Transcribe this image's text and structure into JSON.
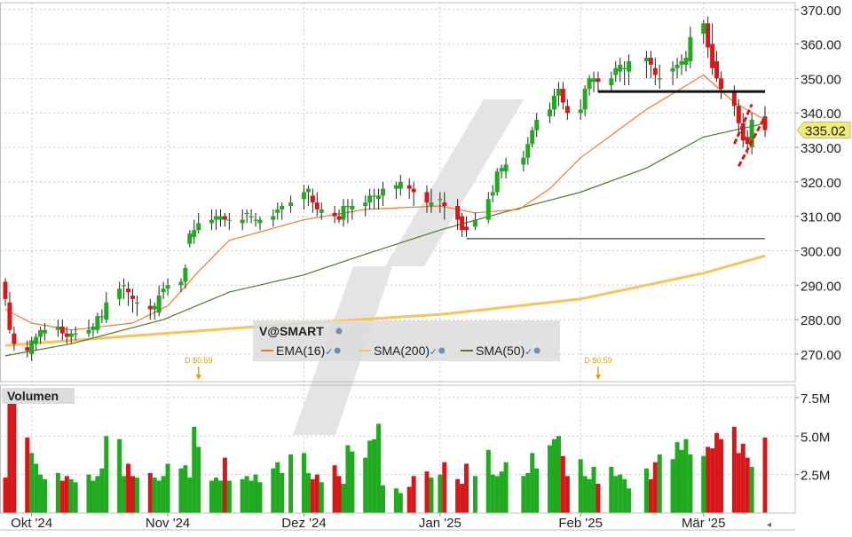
{
  "chart_data": [
    {
      "type": "candlestick",
      "title": "V@SMART",
      "ylim": [
        262,
        372
      ],
      "yticks": [
        270,
        280,
        290,
        300,
        310,
        320,
        330,
        340,
        350,
        360,
        370
      ],
      "ytick_labels": [
        "270.00",
        "280.00",
        "290.00",
        "300.00",
        "310.00",
        "320.00",
        "330.00",
        "340.00",
        "350.00",
        "360.00",
        "370.00"
      ],
      "last_price": 335.02,
      "last_price_label": "335.02",
      "grid": true,
      "legend_placement": "bottom-center",
      "legend": [
        {
          "name": "EMA(16)",
          "color": "#f07a2c"
        },
        {
          "name": "SMA(200)",
          "color": "#f7c35b"
        },
        {
          "name": "SMA(50)",
          "color": "#4c7a2c"
        }
      ],
      "dividends": [
        {
          "label": "D $0.59",
          "date": "2024-11-08"
        },
        {
          "label": "D $0.59",
          "date": "2025-02-07"
        }
      ],
      "up_color": "#1faa1f",
      "down_color": "#d81818",
      "x_axis": {
        "labels": [
          "Okt '24",
          "Nov '24",
          "Dez '24",
          "Jan '25",
          "Feb '25",
          "Mär '25"
        ],
        "label_dates": [
          "2024-10-01",
          "2024-11-01",
          "2024-12-02",
          "2025-01-02",
          "2025-02-03",
          "2025-03-03"
        ]
      },
      "candles": {
        "dates": [
          "2024-09-25",
          "2024-09-26",
          "2024-09-27",
          "2024-09-30",
          "2024-10-01",
          "2024-10-02",
          "2024-10-03",
          "2024-10-04",
          "2024-10-07",
          "2024-10-08",
          "2024-10-09",
          "2024-10-10",
          "2024-10-11",
          "2024-10-14",
          "2024-10-15",
          "2024-10-16",
          "2024-10-17",
          "2024-10-18",
          "2024-10-21",
          "2024-10-22",
          "2024-10-23",
          "2024-10-24",
          "2024-10-25",
          "2024-10-28",
          "2024-10-29",
          "2024-10-30",
          "2024-10-31",
          "2024-11-01",
          "2024-11-04",
          "2024-11-05",
          "2024-11-06",
          "2024-11-07",
          "2024-11-08",
          "2024-11-11",
          "2024-11-12",
          "2024-11-13",
          "2024-11-14",
          "2024-11-15",
          "2024-11-18",
          "2024-11-19",
          "2024-11-20",
          "2024-11-21",
          "2024-11-22",
          "2024-11-25",
          "2024-11-26",
          "2024-11-27",
          "2024-11-29",
          "2024-12-02",
          "2024-12-03",
          "2024-12-04",
          "2024-12-05",
          "2024-12-06",
          "2024-12-09",
          "2024-12-10",
          "2024-12-11",
          "2024-12-12",
          "2024-12-13",
          "2024-12-16",
          "2024-12-17",
          "2024-12-18",
          "2024-12-19",
          "2024-12-20",
          "2024-12-23",
          "2024-12-24",
          "2024-12-26",
          "2024-12-27",
          "2024-12-30",
          "2024-12-31",
          "2025-01-02",
          "2025-01-03",
          "2025-01-06",
          "2025-01-07",
          "2025-01-08",
          "2025-01-10",
          "2025-01-13",
          "2025-01-14",
          "2025-01-15",
          "2025-01-16",
          "2025-01-17",
          "2025-01-21",
          "2025-01-22",
          "2025-01-23",
          "2025-01-24",
          "2025-01-27",
          "2025-01-28",
          "2025-01-29",
          "2025-01-30",
          "2025-01-31",
          "2025-02-03",
          "2025-02-04",
          "2025-02-05",
          "2025-02-06",
          "2025-02-07",
          "2025-02-10",
          "2025-02-11",
          "2025-02-12",
          "2025-02-13",
          "2025-02-14",
          "2025-02-18",
          "2025-02-19",
          "2025-02-20",
          "2025-02-21",
          "2025-02-24",
          "2025-02-25",
          "2025-02-26",
          "2025-02-27",
          "2025-02-28",
          "2025-03-03",
          "2025-03-04",
          "2025-03-05",
          "2025-03-06",
          "2025-03-07",
          "2025-03-10",
          "2025-03-11",
          "2025-03-12",
          "2025-03-13",
          "2025-03-14",
          "2025-03-17"
        ],
        "open": [
          291,
          285,
          276,
          272,
          270,
          273,
          275,
          276,
          277,
          278,
          276,
          275,
          276,
          276,
          277,
          277,
          281,
          280,
          286,
          290,
          289,
          287,
          285,
          284,
          283,
          282,
          288,
          289,
          290,
          291,
          302,
          304,
          306,
          308,
          309,
          309,
          310,
          309,
          308,
          311,
          310,
          309,
          308,
          309,
          311,
          312,
          313,
          315,
          317,
          316,
          314,
          311,
          311,
          310,
          309,
          313,
          312,
          313,
          314,
          316,
          315,
          316,
          318,
          318,
          319,
          318,
          317,
          313,
          315,
          314,
          313,
          310,
          307,
          307,
          309,
          316,
          317,
          323,
          323,
          325,
          327,
          331,
          335,
          339,
          341,
          345,
          347,
          342,
          340,
          341,
          347,
          349,
          350,
          348,
          351,
          352,
          353,
          352,
          355,
          356,
          353,
          350,
          352,
          353,
          354,
          354,
          355,
          363,
          366,
          360,
          355,
          350,
          346,
          342,
          337,
          333,
          330,
          339
        ],
        "high": [
          292,
          288,
          278,
          274,
          275,
          276,
          278,
          279,
          280,
          280,
          278,
          277,
          278,
          280,
          279,
          282,
          283,
          288,
          291,
          292,
          291,
          289,
          287,
          286,
          285,
          290,
          291,
          292,
          292,
          296,
          306,
          309,
          311,
          312,
          312,
          312,
          311,
          311,
          312,
          312,
          312,
          311,
          310,
          312,
          314,
          314,
          316,
          319,
          319,
          318,
          317,
          314,
          313,
          312,
          315,
          315,
          315,
          316,
          318,
          318,
          318,
          320,
          320,
          322,
          321,
          320,
          319,
          318,
          317,
          317,
          315,
          311,
          310,
          311,
          317,
          319,
          324,
          325,
          327,
          329,
          333,
          336,
          340,
          343,
          347,
          349,
          349,
          344,
          344,
          348,
          351,
          352,
          352,
          352,
          355,
          356,
          355,
          357,
          358,
          358,
          356,
          354,
          355,
          356,
          357,
          358,
          365,
          367,
          368,
          366,
          358,
          352,
          348,
          344,
          340,
          335,
          340,
          342
        ],
        "low": [
          284,
          276,
          271,
          269,
          268,
          271,
          273,
          274,
          275,
          274,
          273,
          273,
          274,
          275,
          275,
          276,
          279,
          279,
          284,
          286,
          284,
          282,
          281,
          280,
          280,
          281,
          286,
          287,
          288,
          289,
          301,
          302,
          305,
          306,
          306,
          307,
          307,
          306,
          306,
          308,
          308,
          307,
          306,
          307,
          309,
          309,
          311,
          312,
          313,
          311,
          310,
          309,
          308,
          308,
          307,
          308,
          309,
          310,
          312,
          312,
          312,
          313,
          315,
          316,
          315,
          313,
          311,
          311,
          311,
          309,
          306,
          304,
          304,
          306,
          308,
          314,
          316,
          321,
          321,
          323,
          325,
          330,
          333,
          337,
          339,
          342,
          341,
          338,
          338,
          339,
          345,
          346,
          346,
          346,
          349,
          349,
          348,
          348,
          350,
          350,
          348,
          347,
          348,
          350,
          351,
          352,
          353,
          360,
          356,
          351,
          349,
          344,
          339,
          334,
          330,
          328,
          328,
          333
        ],
        "close": [
          286,
          277,
          273,
          271,
          274,
          275,
          277,
          277,
          278,
          276,
          275,
          276,
          276,
          277,
          278,
          281,
          281,
          285,
          289,
          290,
          288,
          286,
          285,
          283,
          284,
          287,
          289,
          290,
          291,
          295,
          305,
          306,
          308,
          309,
          310,
          310,
          309,
          309,
          309,
          311,
          310,
          309,
          309,
          310,
          312,
          313,
          314,
          317,
          318,
          314,
          312,
          312,
          310,
          309,
          313,
          313,
          313,
          314,
          316,
          316,
          316,
          318,
          319,
          320,
          318,
          317,
          314,
          314,
          315,
          313,
          309,
          306,
          306,
          309,
          315,
          317,
          323,
          324,
          325,
          327,
          331,
          335,
          338,
          341,
          345,
          347,
          343,
          340,
          341,
          347,
          350,
          350,
          349,
          350,
          353,
          354,
          353,
          355,
          356,
          354,
          351,
          350,
          353,
          354,
          355,
          356,
          362,
          366,
          359,
          353,
          350,
          347,
          342,
          337,
          332,
          331,
          338,
          335
        ]
      },
      "sma200": {
        "dates": [
          "2024-09-25",
          "2024-10-31",
          "2024-12-02",
          "2025-01-02",
          "2025-02-03",
          "2025-03-03",
          "2025-03-17"
        ],
        "values": [
          272.5,
          276,
          279,
          281.5,
          286,
          293.5,
          298.5
        ]
      },
      "sma50": {
        "dates": [
          "2024-09-25",
          "2024-10-10",
          "2024-10-31",
          "2024-11-15",
          "2024-12-02",
          "2024-12-16",
          "2025-01-02",
          "2025-01-16",
          "2025-02-03",
          "2025-02-18",
          "2025-03-03",
          "2025-03-17"
        ],
        "values": [
          269.5,
          273,
          280,
          288,
          293,
          299,
          306,
          311,
          317,
          324,
          333,
          337
        ]
      },
      "ema16": {
        "dates": [
          "2024-09-25",
          "2024-10-01",
          "2024-10-10",
          "2024-10-24",
          "2024-11-01",
          "2024-11-08",
          "2024-11-15",
          "2024-12-02",
          "2024-12-16",
          "2025-01-02",
          "2025-01-10",
          "2025-01-20",
          "2025-01-27",
          "2025-02-03",
          "2025-02-18",
          "2025-03-03",
          "2025-03-10",
          "2025-03-17"
        ],
        "values": [
          283,
          279,
          277,
          279,
          284,
          294,
          303,
          309,
          312,
          313,
          311,
          312,
          318,
          327,
          341,
          351,
          343,
          338
        ]
      },
      "trendlines": [
        {
          "style": "horizontal",
          "color": "#111111",
          "width": 3,
          "from": "2025-02-07",
          "to": "2025-03-17",
          "value": 346.2
        },
        {
          "style": "horizontal",
          "color": "#111111",
          "width": 1,
          "from": "2025-01-08",
          "to": "2025-03-17",
          "value": 303.5
        },
        {
          "style": "dashed",
          "color": "#d81818",
          "width": 3,
          "from": "2025-03-11",
          "to": "2025-03-17",
          "value_from": 324.5,
          "value_to": 339
        },
        {
          "style": "dashed",
          "color": "#d81818",
          "width": 3,
          "from": "2025-03-10",
          "to": "2025-03-14",
          "value_from": 331,
          "value_to": 342.5
        }
      ]
    },
    {
      "type": "bar",
      "title": "Volumen",
      "ylim": [
        0,
        8.3
      ],
      "yticks": [
        2.5,
        5.0,
        7.5
      ],
      "ytick_labels": [
        "2.5M",
        "5.0M",
        "7.5M"
      ],
      "unit": "M",
      "values": [
        2.3,
        7.5,
        7.5,
        4.9,
        3.9,
        3.2,
        2.5,
        2.2,
        2.6,
        2.1,
        2.4,
        2.2,
        2.0,
        2.5,
        2.1,
        2.4,
        2.9,
        5.0,
        4.8,
        2.4,
        3.2,
        2.4,
        2.3,
        2.6,
        2.3,
        2.1,
        2.4,
        3.2,
        2.9,
        3.1,
        2.3,
        5.6,
        4.3,
        2.1,
        2.3,
        2.1,
        3.6,
        2.1,
        2.2,
        2.4,
        2.1,
        2.5,
        2.0,
        2.9,
        3.3,
        2.6,
        3.8,
        3.9,
        2.6,
        2.2,
        2.5,
        2.0,
        3.1,
        2.4,
        1.9,
        4.4,
        4.0,
        3.6,
        4.7,
        4.8,
        5.8,
        1.8,
        1.6,
        1.3,
        1.7,
        2.4,
        2.7,
        2.3,
        2.5,
        3.3,
        2.2,
        1.9,
        3.2,
        2.4,
        4.1,
        2.5,
        2.4,
        2.7,
        3.3,
        2.4,
        2.6,
        3.9,
        2.9,
        4.4,
        4.8,
        5.0,
        3.7,
        2.4,
        3.5,
        2.4,
        2.2,
        3.0,
        1.9,
        3.0,
        2.4,
        2.5,
        2.2,
        1.6,
        2.9,
        2.2,
        3.3,
        3.8,
        3.5,
        4.6,
        4.1,
        4.8,
        3.8,
        3.7,
        4.3,
        4.2,
        5.2,
        4.8,
        5.6,
        3.9,
        4.5,
        3.6,
        3.0,
        4.9
      ]
    }
  ]
}
